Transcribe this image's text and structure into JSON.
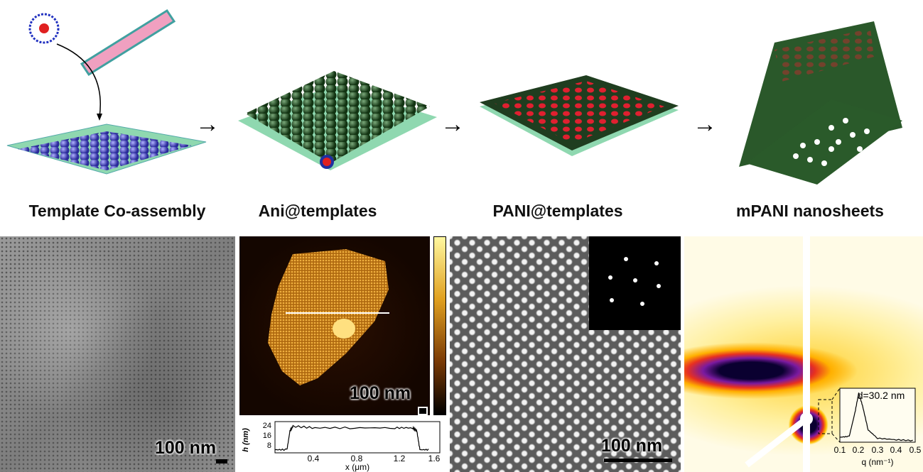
{
  "steps": [
    {
      "label": "Template Co-assembly"
    },
    {
      "label": "Ani@templates"
    },
    {
      "label": "PANI@templates"
    },
    {
      "label": "mPANI nanosheets"
    }
  ],
  "arrow_glyph": "→",
  "panels": {
    "sem": {
      "scale_label": "100 nm"
    },
    "afm": {
      "scale_label": "100 nm",
      "profile": {
        "ylabel": "h (nm)",
        "xlabel": "x (μm)",
        "yticks": [
          "24",
          "16",
          "8"
        ],
        "xticks": [
          "0.4",
          "0.8",
          "1.2",
          "1.6"
        ]
      }
    },
    "tem": {
      "scale_label": "100 nm"
    },
    "saxs": {
      "annotation": "d=30.2 nm",
      "xlabel": "q (nm⁻¹)",
      "xticks": [
        "0.1",
        "0.2",
        "0.3",
        "0.4",
        "0.5"
      ]
    }
  },
  "chart_data": [
    {
      "type": "line",
      "xlabel": "x (μm)",
      "ylabel": "h (nm)",
      "xlim": [
        0,
        1.65
      ],
      "ylim": [
        6,
        26
      ],
      "x": [
        0,
        0.12,
        0.15,
        0.18,
        0.4,
        0.8,
        1.2,
        1.38,
        1.42,
        1.45,
        1.55
      ],
      "y": [
        8,
        8,
        20,
        23,
        22,
        22,
        22,
        22,
        20,
        8,
        8
      ]
    },
    {
      "type": "line",
      "xlabel": "q (nm⁻¹)",
      "xlim": [
        0.1,
        0.5
      ],
      "x": [
        0.1,
        0.15,
        0.18,
        0.2,
        0.22,
        0.25,
        0.3,
        0.4,
        0.5
      ],
      "y": [
        0.1,
        0.12,
        0.6,
        1.0,
        0.75,
        0.25,
        0.08,
        0.05,
        0.03
      ],
      "annotation": "d=30.2 nm"
    }
  ],
  "colors": {
    "template_sphere": "#5050d0",
    "ani_sphere": "#2f5f2f",
    "substrate": "#8fd8b0",
    "pani_sheet": "#1f3d1f",
    "pore": "#e02030"
  }
}
